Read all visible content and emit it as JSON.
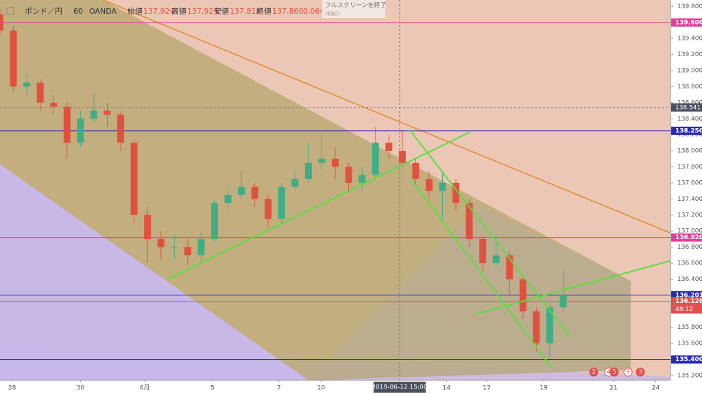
{
  "header": {
    "symbol": "ポンド／円",
    "interval": "60",
    "broker": "OANDA",
    "stats": [
      {
        "label": "始値",
        "value": "137.924"
      },
      {
        "label": "高値",
        "value": "137.924"
      },
      {
        "label": "安値",
        "value": "137.818"
      },
      {
        "label": "終値",
        "value": "137.860"
      }
    ],
    "change": "-0.064",
    "tooltip": "フルスクリーンを終了",
    "tooltip_key": "(ESC)"
  },
  "chart_data": {
    "type": "candlestick",
    "x": [
      0,
      2,
      4,
      6,
      8,
      10,
      12,
      14,
      16,
      18,
      20,
      22,
      24,
      26,
      28,
      30,
      32,
      34,
      36,
      38,
      40,
      42,
      44,
      46,
      48,
      50,
      52,
      54,
      56,
      58,
      60,
      62,
      64,
      66,
      68,
      70,
      72,
      74,
      76,
      78,
      80,
      82,
      84
    ],
    "open": [
      139.7,
      139.5,
      138.8,
      138.85,
      138.6,
      138.55,
      138.1,
      138.4,
      138.5,
      138.45,
      138.1,
      137.2,
      136.9,
      136.8,
      136.8,
      136.7,
      136.9,
      137.35,
      137.45,
      137.55,
      137.4,
      137.15,
      137.55,
      137.65,
      137.85,
      137.9,
      137.8,
      137.6,
      137.7,
      138.1,
      138.0,
      137.85,
      137.65,
      137.5,
      137.6,
      137.35,
      136.9,
      136.6,
      136.7,
      136.4,
      136.0,
      135.6,
      136.05
    ],
    "high": [
      139.76,
      139.56,
      138.95,
      138.9,
      138.7,
      138.6,
      138.5,
      138.72,
      138.6,
      138.5,
      138.15,
      137.3,
      137.0,
      136.95,
      136.9,
      137.0,
      137.4,
      137.55,
      137.75,
      137.6,
      137.45,
      137.6,
      137.75,
      138.1,
      138.2,
      138.05,
      137.85,
      137.8,
      138.3,
      138.2,
      138.25,
      137.9,
      137.75,
      137.75,
      137.65,
      137.4,
      136.95,
      136.95,
      136.75,
      136.45,
      136.05,
      136.1,
      136.5
    ],
    "low": [
      139.44,
      138.74,
      138.7,
      138.5,
      138.45,
      137.9,
      138.05,
      138.35,
      138.3,
      138.0,
      137.1,
      136.6,
      136.65,
      136.65,
      136.58,
      136.62,
      136.85,
      137.25,
      137.4,
      137.3,
      137.05,
      137.1,
      137.5,
      137.6,
      137.75,
      137.65,
      137.5,
      137.5,
      137.65,
      137.9,
      137.8,
      137.55,
      137.4,
      137.15,
      137.25,
      136.8,
      136.5,
      136.55,
      136.2,
      135.9,
      135.5,
      135.42,
      136.0
    ],
    "close": [
      139.5,
      138.8,
      138.85,
      138.6,
      138.55,
      138.1,
      138.4,
      138.5,
      138.45,
      138.1,
      137.2,
      136.9,
      136.8,
      136.8,
      136.7,
      136.9,
      137.35,
      137.45,
      137.55,
      137.4,
      137.15,
      137.55,
      137.65,
      137.85,
      137.9,
      137.8,
      137.6,
      137.7,
      138.1,
      138.0,
      137.85,
      137.65,
      137.5,
      137.6,
      137.35,
      136.9,
      136.6,
      136.7,
      136.4,
      136.0,
      135.6,
      136.05,
      136.2
    ],
    "up_color": "#3fae84",
    "down_color": "#e0523f",
    "xlim": [
      0,
      100
    ],
    "xticks": [
      {
        "value": 1.8,
        "label": "28"
      },
      {
        "value": 12,
        "label": "30"
      },
      {
        "value": 21.6,
        "label": "6月"
      },
      {
        "value": 31.7,
        "label": "5"
      },
      {
        "value": 41.6,
        "label": "7"
      },
      {
        "value": 47.9,
        "label": "10"
      },
      {
        "value": 66.6,
        "label": "14"
      },
      {
        "value": 72.6,
        "label": "17"
      },
      {
        "value": 81.1,
        "label": "19"
      },
      {
        "value": 91.5,
        "label": "21"
      },
      {
        "value": 97.8,
        "label": "24"
      }
    ],
    "ylim": [
      135.14,
      139.88
    ],
    "yticks": [
      {
        "value": 135.2,
        "label": "135.200"
      },
      {
        "value": 135.4,
        "label": "135.400"
      },
      {
        "value": 135.6,
        "label": "135.600"
      },
      {
        "value": 135.8,
        "label": "135.800"
      },
      {
        "value": 136,
        "label": "136.000"
      },
      {
        "value": 136.2,
        "label": "136.200"
      },
      {
        "value": 136.4,
        "label": "136.400"
      },
      {
        "value": 136.6,
        "label": "136.600"
      },
      {
        "value": 136.8,
        "label": "136.800"
      },
      {
        "value": 137,
        "label": "137.000"
      },
      {
        "value": 137.2,
        "label": "137.200"
      },
      {
        "value": 137.4,
        "label": "137.400"
      },
      {
        "value": 137.6,
        "label": "137.600"
      },
      {
        "value": 137.8,
        "label": "137.800"
      },
      {
        "value": 138,
        "label": "138.000"
      },
      {
        "value": 138.2,
        "label": "138.200"
      },
      {
        "value": 138.4,
        "label": "138.400"
      },
      {
        "value": 138.6,
        "label": "138.600"
      },
      {
        "value": 138.8,
        "label": "138.800"
      },
      {
        "value": 139,
        "label": "139.000"
      },
      {
        "value": 139.2,
        "label": "139.200"
      },
      {
        "value": 139.4,
        "label": "139.400"
      },
      {
        "value": 139.6,
        "label": "139.600"
      },
      {
        "value": 139.8,
        "label": "139.800"
      }
    ],
    "levels": [
      {
        "value": 139.6,
        "label": "139.600",
        "color": "#e0409a"
      },
      {
        "value": 138.25,
        "label": "138.250",
        "color": "#2a2ab8"
      },
      {
        "value": 136.92,
        "label": "136.920",
        "color": "#e0409a"
      },
      {
        "value": 136.201,
        "label": "136.201",
        "color": "#2a2ab8"
      },
      {
        "value": 136.126,
        "label": "136.126",
        "color": "#e05050"
      },
      {
        "value": 135.4,
        "label": "135.400",
        "color": "#2a2ab8"
      }
    ],
    "countdown": "48:12",
    "crosshair": {
      "x": 59.6,
      "x_label": "2019-06-12   15:00",
      "y_value": 138.541,
      "y_label": "138.541"
    },
    "badges": [
      "2",
      "4",
      "5",
      "9",
      "3"
    ]
  }
}
